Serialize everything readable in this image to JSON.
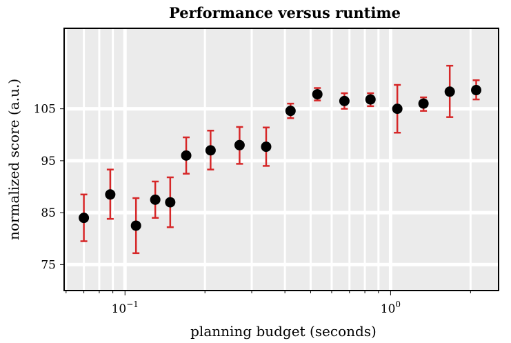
{
  "chart_data": {
    "type": "scatter",
    "title": "Performance versus runtime",
    "xlabel": "planning budget (seconds)",
    "ylabel": "normalized score (a.u.)",
    "x_scale": "log",
    "xlim": [
      0.059,
      2.55
    ],
    "ylim": [
      70,
      120.5
    ],
    "x_ticks": [
      {
        "value": 0.1,
        "base": "10",
        "exp": "−1"
      },
      {
        "value": 1,
        "base": "10",
        "exp": "0"
      }
    ],
    "y_ticks": [
      75,
      85,
      95,
      105
    ],
    "grid": true,
    "error_bar_color": "#d62728",
    "marker_color": "#000000",
    "plot_background": "#ebebeb",
    "points": [
      {
        "x": 0.07,
        "y": 84.0,
        "lo": 79.5,
        "hi": 88.5
      },
      {
        "x": 0.088,
        "y": 88.5,
        "lo": 83.8,
        "hi": 93.3
      },
      {
        "x": 0.11,
        "y": 82.5,
        "lo": 77.2,
        "hi": 87.8
      },
      {
        "x": 0.13,
        "y": 87.5,
        "lo": 84.0,
        "hi": 91.0
      },
      {
        "x": 0.148,
        "y": 87.0,
        "lo": 82.2,
        "hi": 91.8
      },
      {
        "x": 0.17,
        "y": 96.0,
        "lo": 92.5,
        "hi": 99.5
      },
      {
        "x": 0.21,
        "y": 97.0,
        "lo": 93.3,
        "hi": 100.8
      },
      {
        "x": 0.27,
        "y": 98.0,
        "lo": 94.4,
        "hi": 101.5
      },
      {
        "x": 0.34,
        "y": 97.7,
        "lo": 94.0,
        "hi": 101.4
      },
      {
        "x": 0.42,
        "y": 104.6,
        "lo": 103.2,
        "hi": 106.0
      },
      {
        "x": 0.53,
        "y": 107.8,
        "lo": 106.6,
        "hi": 109.0
      },
      {
        "x": 0.67,
        "y": 106.5,
        "lo": 105.0,
        "hi": 108.0
      },
      {
        "x": 0.84,
        "y": 106.8,
        "lo": 105.5,
        "hi": 108.0
      },
      {
        "x": 1.06,
        "y": 105.0,
        "lo": 100.4,
        "hi": 109.6
      },
      {
        "x": 1.33,
        "y": 106.0,
        "lo": 104.6,
        "hi": 107.2
      },
      {
        "x": 1.67,
        "y": 108.3,
        "lo": 103.4,
        "hi": 113.3
      },
      {
        "x": 2.1,
        "y": 108.6,
        "lo": 106.8,
        "hi": 110.5
      }
    ]
  }
}
